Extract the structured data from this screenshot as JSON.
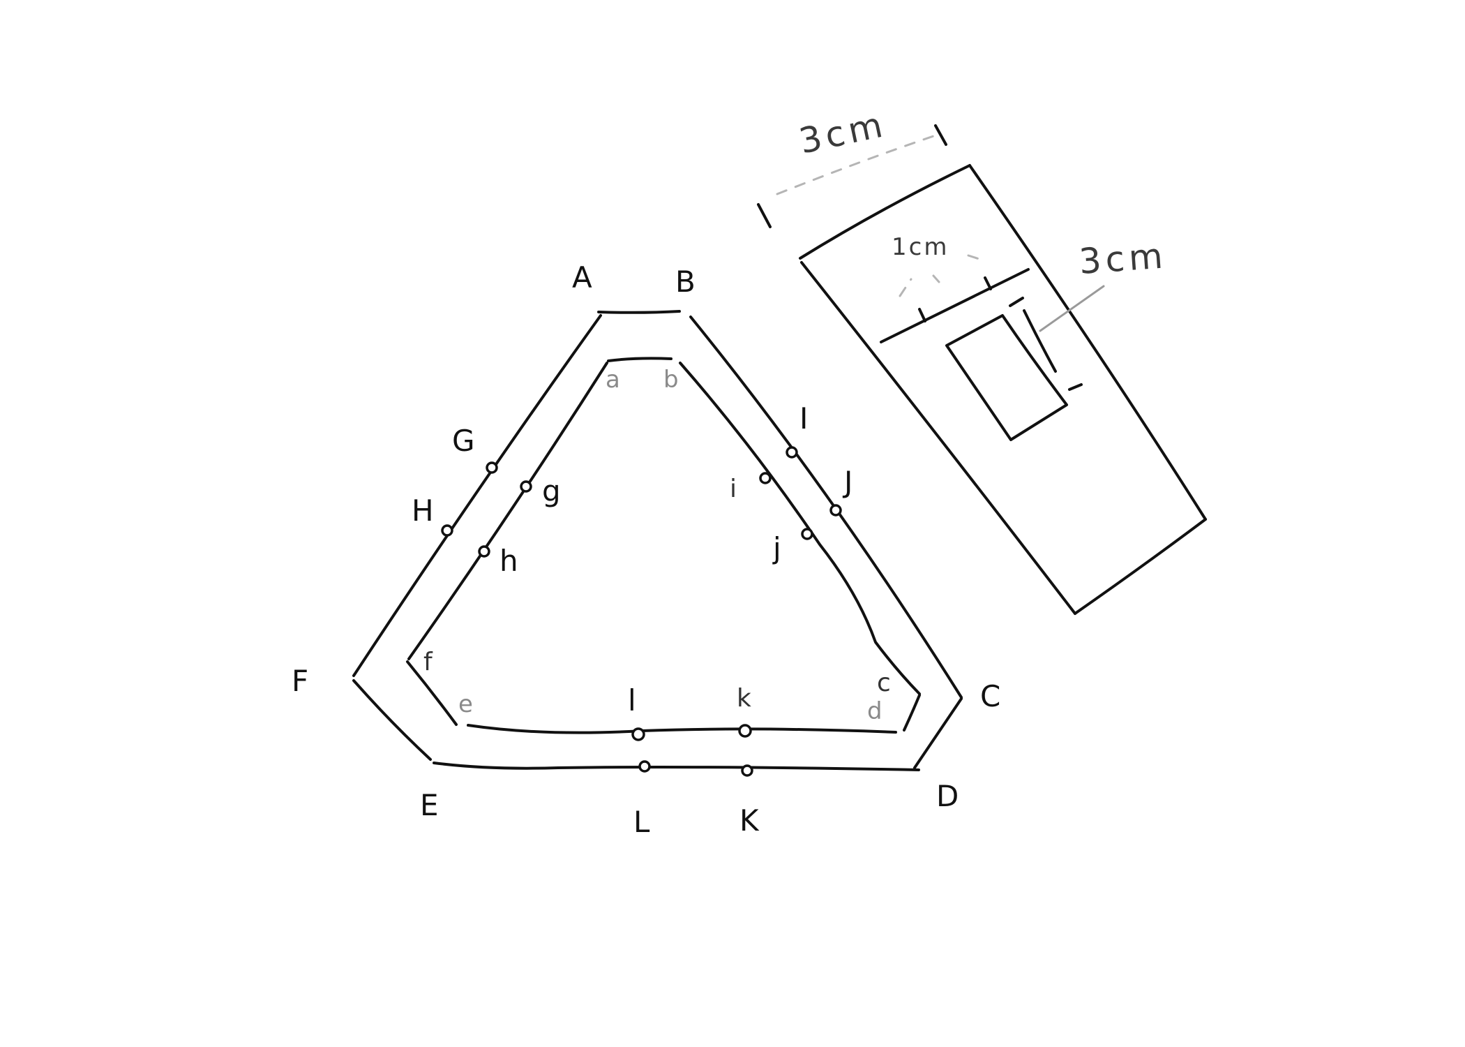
{
  "outer_labels": {
    "A": "A",
    "B": "B",
    "C": "C",
    "D": "D",
    "E": "E",
    "F": "F",
    "G": "G",
    "H": "H",
    "I": "I",
    "J": "J",
    "K": "K",
    "L": "L"
  },
  "inner_labels": {
    "a": "a",
    "b": "b",
    "c": "c",
    "d": "d",
    "e": "e",
    "f": "f",
    "g": "g",
    "h": "h",
    "i": "i",
    "j": "j",
    "k": "k",
    "l": "l"
  },
  "strip": {
    "width_label": "3cm",
    "slot_width_label": "1cm",
    "slot_length_label": "3cm"
  }
}
